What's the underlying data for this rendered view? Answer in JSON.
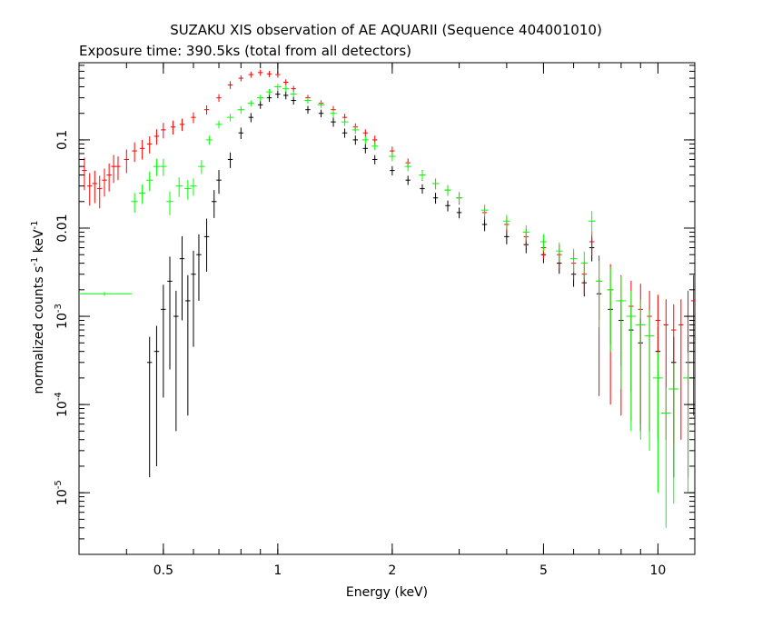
{
  "chart_data": {
    "type": "scatter",
    "title": "SUZAKU XIS observation of AE AQUARII (Sequence 404001010)",
    "subtitle": "Exposure time: 390.5ks (total from all detectors)",
    "xlabel": "Energy (keV)",
    "ylabel_parts": {
      "main": "normalized counts s",
      "exp1": "-1",
      "mid": " keV",
      "exp2": "-1"
    },
    "xscale": "log",
    "yscale": "log",
    "xlim": [
      0.3,
      12.5
    ],
    "ylim": [
      2e-06,
      0.75
    ],
    "grid": false,
    "x_ticks": [
      {
        "value": 0.5,
        "label": "0.5"
      },
      {
        "value": 1,
        "label": "1"
      },
      {
        "value": 2,
        "label": "2"
      },
      {
        "value": 5,
        "label": "5"
      },
      {
        "value": 10,
        "label": "10"
      }
    ],
    "y_ticks": [
      {
        "value": 0.1,
        "base": "0.1",
        "exp": ""
      },
      {
        "value": 0.01,
        "base": "0.01",
        "exp": ""
      },
      {
        "value": 0.001,
        "base": "10",
        "exp": "-3"
      },
      {
        "value": 0.0001,
        "base": "10",
        "exp": "-4"
      },
      {
        "value": 1e-05,
        "base": "10",
        "exp": "-5"
      }
    ],
    "series": [
      {
        "color": "#000000",
        "x": [
          0.46,
          0.48,
          0.5,
          0.52,
          0.54,
          0.56,
          0.58,
          0.6,
          0.62,
          0.65,
          0.68,
          0.7,
          0.75,
          0.8,
          0.85,
          0.9,
          0.95,
          1.0,
          1.05,
          1.1,
          1.2,
          1.3,
          1.4,
          1.5,
          1.6,
          1.7,
          1.8,
          2.0,
          2.2,
          2.4,
          2.6,
          2.8,
          3.0,
          3.5,
          4.0,
          4.5,
          5.0,
          5.5,
          6.0,
          6.4,
          6.7,
          7.0,
          7.5,
          8.0,
          8.5,
          9.0,
          10.0,
          11.0,
          12.0
        ],
        "y": [
          0.0003,
          0.0004,
          0.0012,
          0.0025,
          0.001,
          0.0045,
          0.0015,
          0.003,
          0.005,
          0.008,
          0.02,
          0.035,
          0.06,
          0.12,
          0.18,
          0.25,
          0.3,
          0.33,
          0.32,
          0.28,
          0.22,
          0.2,
          0.16,
          0.12,
          0.1,
          0.08,
          0.06,
          0.045,
          0.035,
          0.028,
          0.022,
          0.018,
          0.015,
          0.011,
          0.008,
          0.0065,
          0.005,
          0.004,
          0.003,
          0.0024,
          0.006,
          0.0018,
          0.0012,
          0.0009,
          0.0007,
          0.0005,
          0.0004,
          0.0003,
          0.0003
        ],
        "err_frac": [
          0.95,
          0.95,
          0.9,
          0.9,
          0.95,
          0.8,
          0.95,
          0.85,
          0.7,
          0.6,
          0.35,
          0.3,
          0.2,
          0.15,
          0.12,
          0.1,
          0.1,
          0.1,
          0.1,
          0.1,
          0.1,
          0.1,
          0.12,
          0.12,
          0.12,
          0.12,
          0.12,
          0.12,
          0.12,
          0.12,
          0.14,
          0.14,
          0.14,
          0.16,
          0.18,
          0.2,
          0.2,
          0.24,
          0.28,
          0.3,
          0.3,
          0.5,
          0.6,
          0.7,
          0.8,
          0.9,
          0.9,
          0.95,
          0.95
        ]
      },
      {
        "color": "#ff0000",
        "x": [
          0.31,
          0.32,
          0.33,
          0.34,
          0.35,
          0.36,
          0.37,
          0.38,
          0.4,
          0.42,
          0.44,
          0.46,
          0.48,
          0.5,
          0.53,
          0.56,
          0.6,
          0.65,
          0.7,
          0.75,
          0.8,
          0.85,
          0.9,
          0.95,
          1.0,
          1.05,
          1.1,
          1.2,
          1.3,
          1.4,
          1.5,
          1.6,
          1.7,
          1.8,
          2.0,
          2.2,
          2.4,
          2.6,
          2.8,
          3.0,
          3.5,
          4.0,
          4.5,
          5.0,
          5.5,
          6.0,
          6.4,
          6.7,
          7.0,
          7.5,
          8.0,
          8.5,
          9.0,
          9.5,
          10.0,
          10.5,
          11.0,
          11.5,
          12.0,
          12.4
        ],
        "y": [
          0.045,
          0.03,
          0.032,
          0.028,
          0.035,
          0.04,
          0.05,
          0.05,
          0.06,
          0.075,
          0.08,
          0.09,
          0.11,
          0.13,
          0.14,
          0.15,
          0.18,
          0.22,
          0.3,
          0.42,
          0.5,
          0.55,
          0.58,
          0.56,
          0.55,
          0.45,
          0.38,
          0.3,
          0.26,
          0.22,
          0.18,
          0.14,
          0.12,
          0.1,
          0.075,
          0.055,
          0.04,
          0.032,
          0.027,
          0.022,
          0.015,
          0.011,
          0.008,
          0.006,
          0.005,
          0.004,
          0.003,
          0.007,
          0.0025,
          0.002,
          0.0015,
          0.0013,
          0.0012,
          0.001,
          0.0009,
          0.0008,
          0.0007,
          0.0008,
          0.001,
          0.0015
        ],
        "err_frac": [
          0.4,
          0.4,
          0.4,
          0.4,
          0.35,
          0.35,
          0.35,
          0.3,
          0.3,
          0.25,
          0.25,
          0.22,
          0.2,
          0.2,
          0.18,
          0.16,
          0.14,
          0.12,
          0.1,
          0.1,
          0.08,
          0.08,
          0.08,
          0.08,
          0.08,
          0.08,
          0.08,
          0.08,
          0.08,
          0.1,
          0.1,
          0.1,
          0.1,
          0.12,
          0.12,
          0.12,
          0.14,
          0.14,
          0.14,
          0.16,
          0.18,
          0.2,
          0.22,
          0.25,
          0.3,
          0.35,
          0.4,
          0.3,
          0.95,
          0.95,
          0.95,
          0.95,
          0.95,
          0.95,
          0.95,
          0.95,
          0.95,
          0.95,
          0.95,
          0.95
        ]
      },
      {
        "color": "#00ff00",
        "x": [
          0.35,
          0.42,
          0.44,
          0.46,
          0.48,
          0.5,
          0.52,
          0.55,
          0.58,
          0.6,
          0.63,
          0.66,
          0.7,
          0.75,
          0.8,
          0.85,
          0.9,
          0.95,
          1.0,
          1.05,
          1.1,
          1.2,
          1.3,
          1.4,
          1.5,
          1.6,
          1.7,
          1.8,
          2.0,
          2.2,
          2.4,
          2.6,
          2.8,
          3.0,
          3.5,
          4.0,
          4.5,
          5.0,
          5.5,
          6.0,
          6.4,
          6.7,
          7.0,
          7.5,
          8.0,
          8.5,
          9.0,
          9.5,
          10.0,
          10.5,
          11.0,
          12.0
        ],
        "y": [
          0.0018,
          0.02,
          0.025,
          0.035,
          0.05,
          0.05,
          0.02,
          0.03,
          0.028,
          0.03,
          0.05,
          0.1,
          0.15,
          0.18,
          0.22,
          0.26,
          0.3,
          0.35,
          0.4,
          0.38,
          0.33,
          0.28,
          0.25,
          0.2,
          0.16,
          0.13,
          0.1,
          0.085,
          0.065,
          0.05,
          0.04,
          0.032,
          0.027,
          0.022,
          0.016,
          0.012,
          0.009,
          0.007,
          0.0055,
          0.0045,
          0.004,
          0.012,
          0.0025,
          0.002,
          0.0015,
          0.001,
          0.0008,
          0.0006,
          0.0002,
          8e-05,
          0.00015,
          0.0002
        ],
        "x_err_frac": [
          0.18,
          0.02,
          0.02,
          0.02,
          0.02,
          0.02,
          0.02,
          0.02,
          0.02,
          0.02,
          0.02,
          0.02,
          0.02,
          0.02,
          0.02,
          0.02,
          0.02,
          0.02,
          0.02,
          0.02,
          0.02,
          0.02,
          0.02,
          0.02,
          0.02,
          0.02,
          0.02,
          0.02,
          0.02,
          0.02,
          0.02,
          0.02,
          0.02,
          0.02,
          0.02,
          0.02,
          0.02,
          0.02,
          0.02,
          0.02,
          0.02,
          0.02,
          0.02,
          0.02,
          0.03,
          0.03,
          0.03,
          0.03,
          0.03,
          0.03,
          0.03,
          0.03
        ],
        "err_frac": [
          0.05,
          0.25,
          0.25,
          0.25,
          0.22,
          0.22,
          0.3,
          0.25,
          0.25,
          0.22,
          0.18,
          0.12,
          0.1,
          0.1,
          0.1,
          0.08,
          0.08,
          0.08,
          0.08,
          0.08,
          0.08,
          0.08,
          0.08,
          0.1,
          0.1,
          0.1,
          0.1,
          0.1,
          0.12,
          0.12,
          0.12,
          0.14,
          0.14,
          0.14,
          0.16,
          0.18,
          0.2,
          0.22,
          0.25,
          0.3,
          0.35,
          0.3,
          0.7,
          0.8,
          0.9,
          0.95,
          0.95,
          0.95,
          0.95,
          0.95,
          0.95,
          0.95
        ]
      }
    ]
  }
}
